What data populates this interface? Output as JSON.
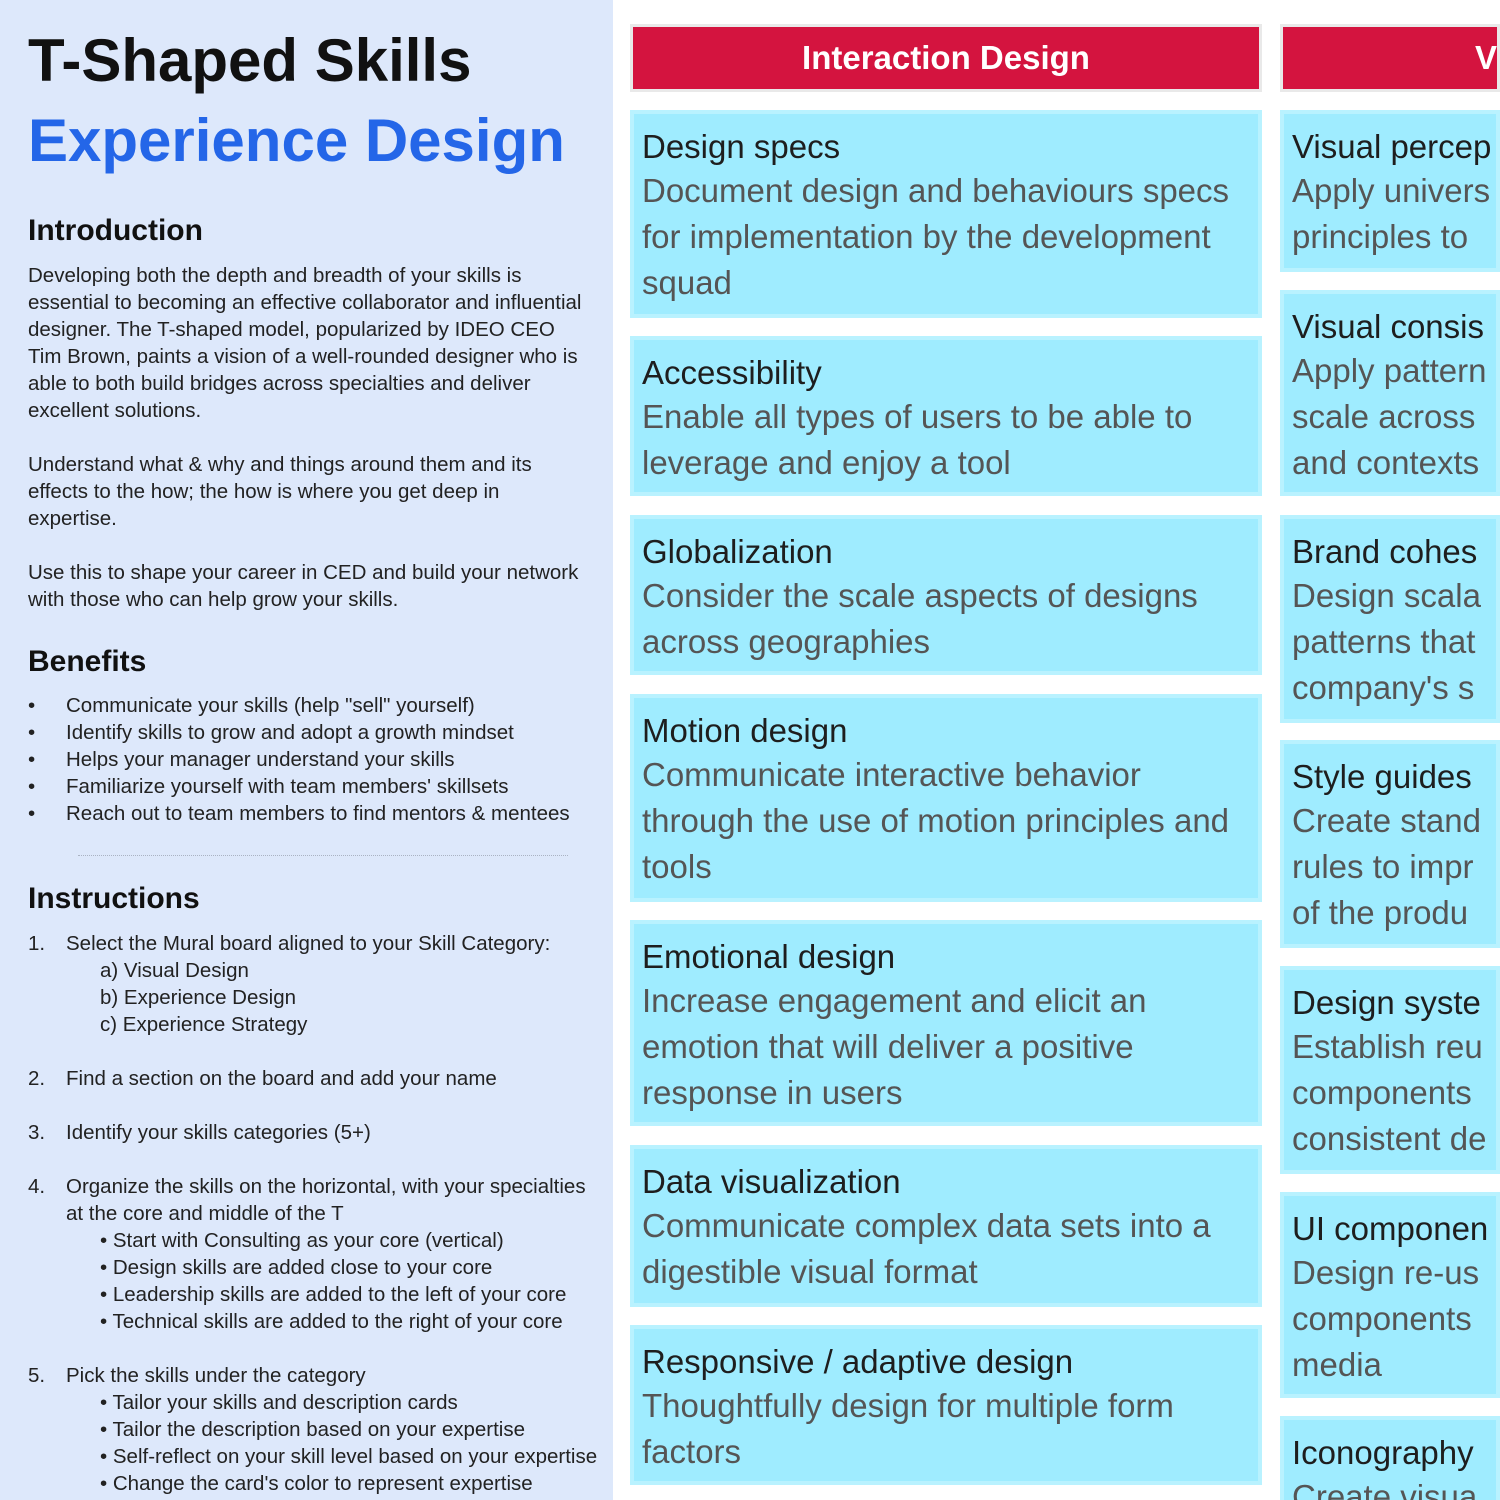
{
  "left": {
    "title": "T-Shaped Skills",
    "subtitle": "Experience Design",
    "introduction": {
      "heading": "Introduction",
      "paragraphs": [
        "Developing both the depth and breadth of your skills is essential to becoming an effective collaborator and influential designer. The T-shaped model, popularized by IDEO CEO Tim Brown, paints a vision of a well-rounded designer who is able to both build bridges across specialties and deliver excellent solutions.",
        "Understand what & why and things around them and its effects to the how; the how is where you get deep in expertise.",
        "Use this to shape your career in CED and build your network with those who can help grow your skills."
      ]
    },
    "benefits": {
      "heading": "Benefits",
      "items": [
        "Communicate your skills (help \"sell\" yourself)",
        "Identify skills to grow and adopt a growth mindset",
        "Helps your manager understand your skills",
        "Familiarize yourself with team members' skillsets",
        "Reach out to team members to find mentors & mentees"
      ]
    },
    "instructions": {
      "heading": "Instructions",
      "steps": [
        {
          "num": "1.",
          "text": "Select the Mural board aligned to your Skill Category:",
          "subs": [
            "a) Visual Design",
            "b) Experience Design",
            "c) Experience Strategy"
          ]
        },
        {
          "num": "2.",
          "text": "Find a section on the board and add your name",
          "subs": []
        },
        {
          "num": "3.",
          "text": "Identify your skills categories (5+)",
          "subs": []
        },
        {
          "num": "4.",
          "text": "Organize the skills on the horizontal, with your specialties",
          "text2": "at the core and middle of the T",
          "subs": [
            "• Start with Consulting as your core (vertical)",
            "• Design skills are added close to your core",
            "• Leadership skills are added to the left of your core",
            "• Technical skills are added to the right of your core"
          ]
        },
        {
          "num": "5.",
          "text": "Pick the skills under the category",
          "subs": [
            "• Tailor your skills and description cards",
            "• Tailor the description based on your expertise",
            "• Self-reflect on your skill level based on your expertise",
            "• Change the card's color to represent expertise"
          ]
        }
      ]
    }
  },
  "columns": [
    {
      "header": "Interaction Design",
      "cards": [
        {
          "title": "Design specs",
          "desc": "Document design and behaviours specs for implementation by the development squad"
        },
        {
          "title": "Accessibility",
          "desc": "Enable all types of users to be able to leverage and enjoy a tool"
        },
        {
          "title": "Globalization",
          "desc": "Consider the scale aspects of designs across geographies"
        },
        {
          "title": "Motion design",
          "desc": "Communicate interactive behavior through the use of motion principles and tools"
        },
        {
          "title": "Emotional design",
          "desc": "Increase engagement and elicit an emotion that will deliver a positive response in users"
        },
        {
          "title": "Data visualization",
          "desc": "Communicate complex data sets into a digestible visual format"
        },
        {
          "title": "Responsive / adaptive design",
          "desc": "Thoughtfully design for multiple form factors"
        }
      ]
    },
    {
      "header": "V",
      "cards": [
        {
          "title": "Visual percep",
          "lines": [
            "Apply univers",
            "principles to"
          ]
        },
        {
          "title": "Visual consis",
          "lines": [
            "Apply pattern",
            "scale across",
            "and contexts"
          ]
        },
        {
          "title": "Brand cohes",
          "lines": [
            "Design scala",
            "patterns that",
            "company's s"
          ]
        },
        {
          "title": "Style guides",
          "lines": [
            "Create stand",
            "rules to impr",
            "of the produ"
          ]
        },
        {
          "title": "Design syste",
          "lines": [
            "Establish reu",
            "components",
            "consistent de"
          ]
        },
        {
          "title": "UI componen",
          "lines": [
            "Design re-us",
            "components",
            "media"
          ]
        },
        {
          "title": "Iconography",
          "lines": [
            "Create visua"
          ]
        }
      ]
    }
  ]
}
